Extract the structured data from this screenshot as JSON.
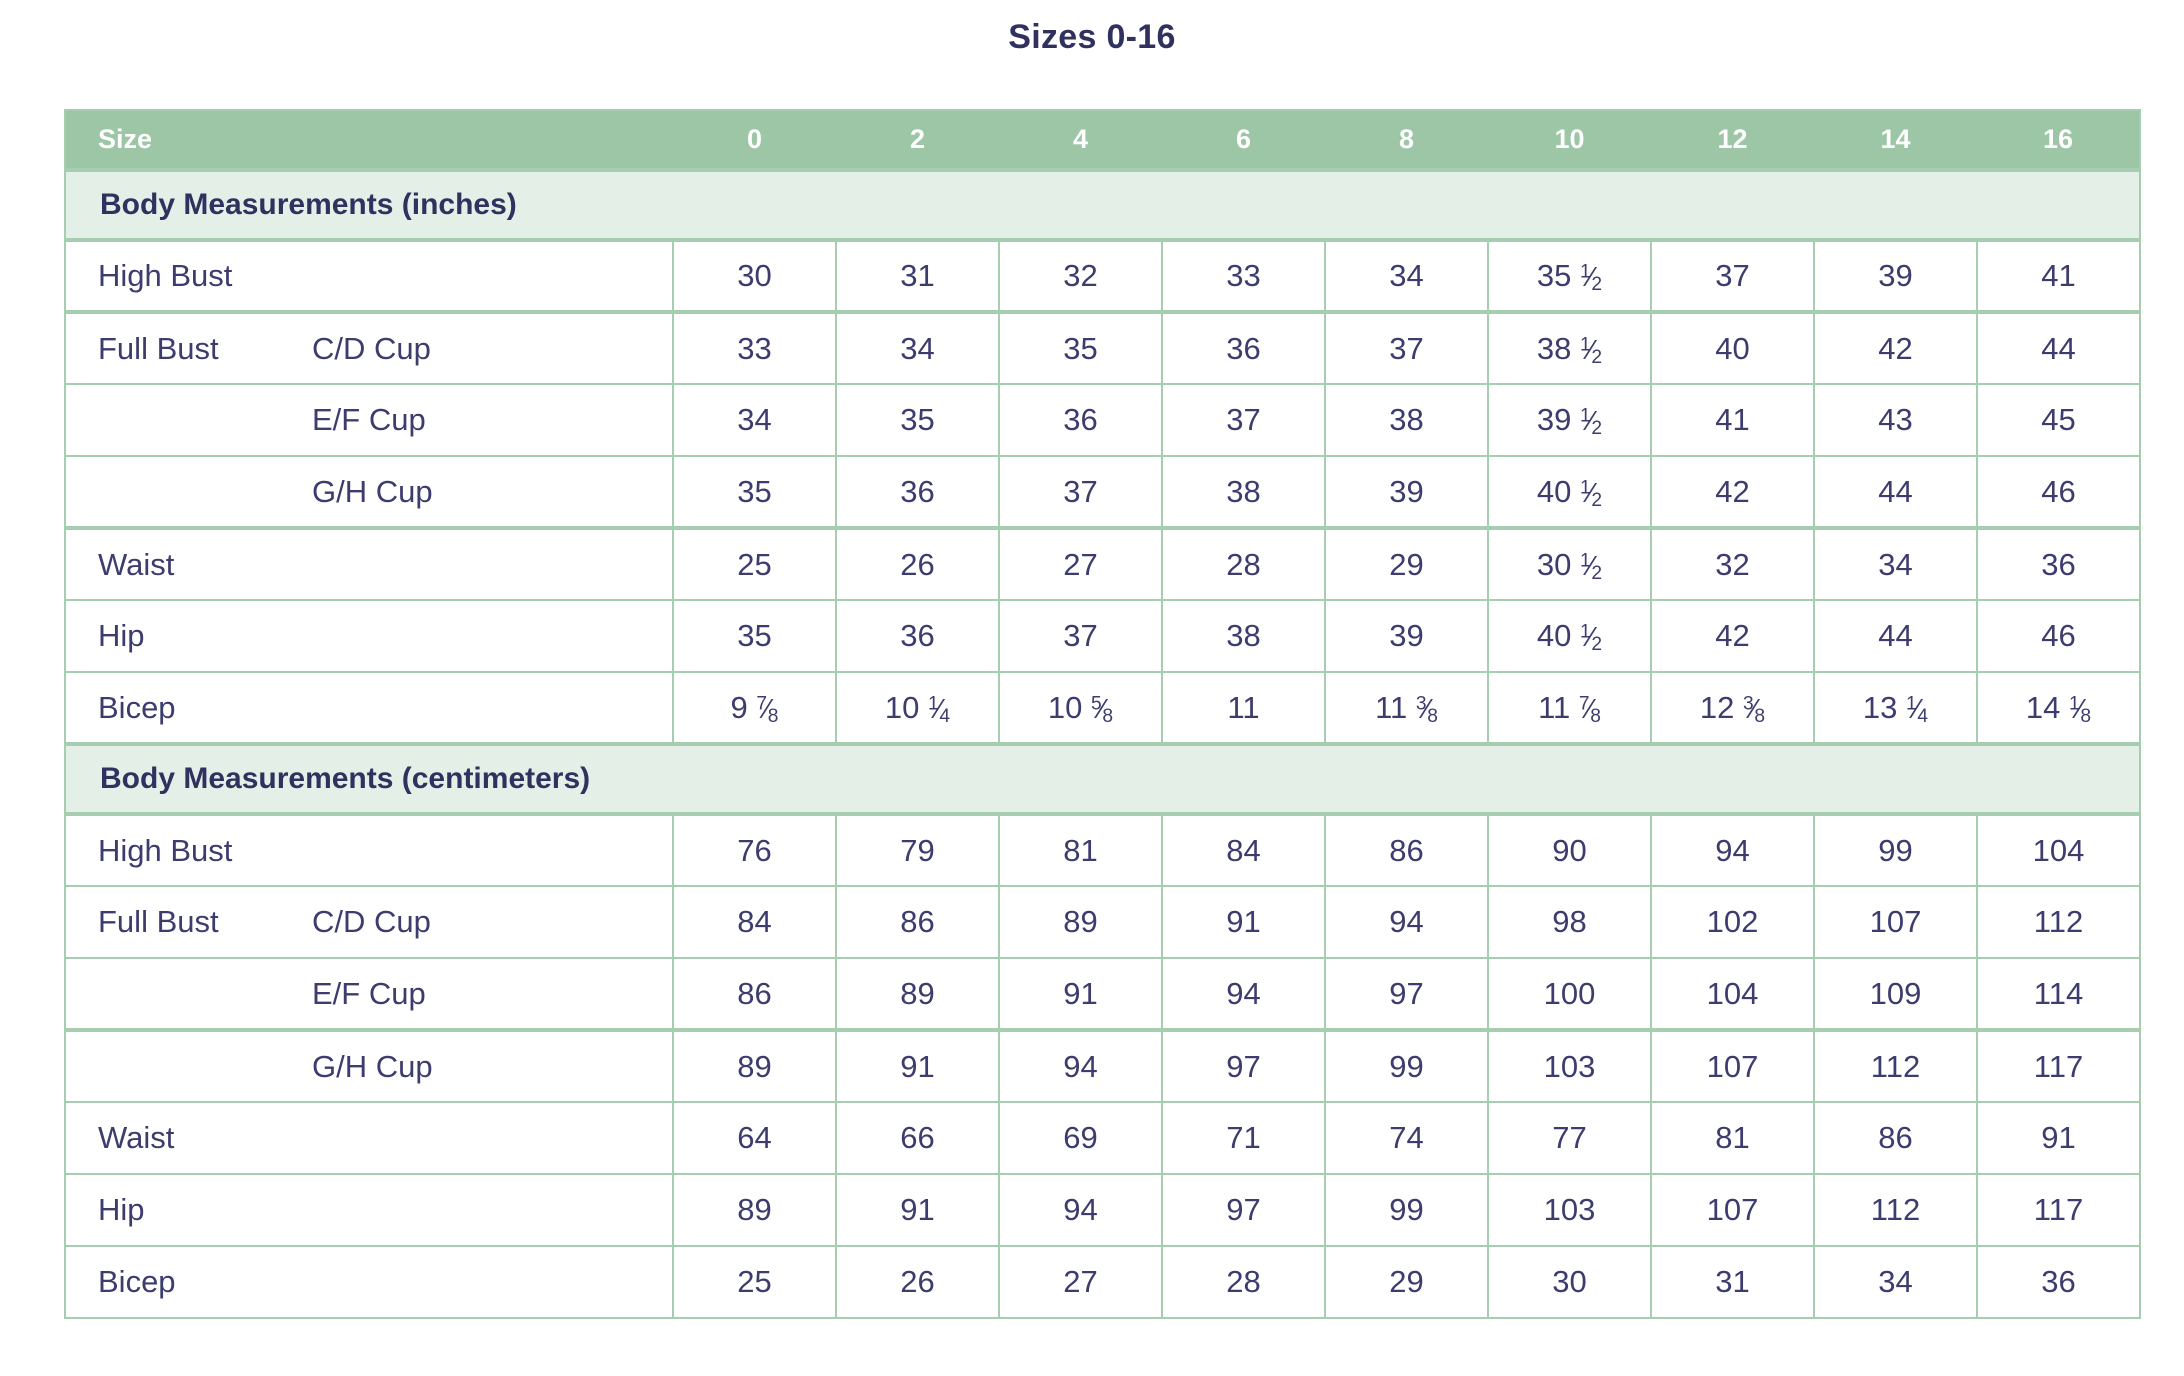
{
  "title": "Sizes 0-16",
  "colors": {
    "header_bg": "#9cc6a5",
    "header_text": "#ffffff",
    "section_bg": "#e4f0e7",
    "border": "#a7cdb0",
    "text": "#3c3c6e",
    "heading_text": "#30315f",
    "row_bg": "#ffffff"
  },
  "table": {
    "header": {
      "label": "Size",
      "sizes": [
        "0",
        "2",
        "4",
        "6",
        "8",
        "10",
        "12",
        "14",
        "16"
      ]
    },
    "sections": [
      {
        "heading": "Body Measurements (inches)",
        "rows": [
          {
            "label": "High Bust",
            "sublabel": "",
            "thick_top": false,
            "values": [
              "30",
              "31",
              "32",
              "33",
              "34",
              "35 1/2",
              "37",
              "39",
              "41"
            ]
          },
          {
            "label": "Full Bust",
            "sublabel": "C/D Cup",
            "thick_top": true,
            "values": [
              "33",
              "34",
              "35",
              "36",
              "37",
              "38 1/2",
              "40",
              "42",
              "44"
            ]
          },
          {
            "label": "",
            "sublabel": "E/F Cup",
            "thick_top": false,
            "values": [
              "34",
              "35",
              "36",
              "37",
              "38",
              "39 1/2",
              "41",
              "43",
              "45"
            ]
          },
          {
            "label": "",
            "sublabel": "G/H Cup",
            "thick_top": false,
            "values": [
              "35",
              "36",
              "37",
              "38",
              "39",
              "40 1/2",
              "42",
              "44",
              "46"
            ]
          },
          {
            "label": "Waist",
            "sublabel": "",
            "thick_top": true,
            "values": [
              "25",
              "26",
              "27",
              "28",
              "29",
              "30 1/2",
              "32",
              "34",
              "36"
            ]
          },
          {
            "label": "Hip",
            "sublabel": "",
            "thick_top": false,
            "values": [
              "35",
              "36",
              "37",
              "38",
              "39",
              "40 1/2",
              "42",
              "44",
              "46"
            ]
          },
          {
            "label": "Bicep",
            "sublabel": "",
            "thick_top": false,
            "values": [
              "9 7/8",
              "10 1/4",
              "10 5/8",
              "11",
              "11 3/8",
              "11 7/8",
              "12 3/8",
              "13 1/4",
              "14 1/8"
            ]
          }
        ]
      },
      {
        "heading": "Body Measurements (centimeters)",
        "rows": [
          {
            "label": "High Bust",
            "sublabel": "",
            "thick_top": false,
            "values": [
              "76",
              "79",
              "81",
              "84",
              "86",
              "90",
              "94",
              "99",
              "104"
            ]
          },
          {
            "label": "Full Bust",
            "sublabel": "C/D Cup",
            "thick_top": false,
            "values": [
              "84",
              "86",
              "89",
              "91",
              "94",
              "98",
              "102",
              "107",
              "112"
            ]
          },
          {
            "label": "",
            "sublabel": "E/F Cup",
            "thick_top": false,
            "values": [
              "86",
              "89",
              "91",
              "94",
              "97",
              "100",
              "104",
              "109",
              "114"
            ]
          },
          {
            "label": "",
            "sublabel": "G/H Cup",
            "thick_top": true,
            "values": [
              "89",
              "91",
              "94",
              "97",
              "99",
              "103",
              "107",
              "112",
              "117"
            ]
          },
          {
            "label": "Waist",
            "sublabel": "",
            "thick_top": false,
            "values": [
              "64",
              "66",
              "69",
              "71",
              "74",
              "77",
              "81",
              "86",
              "91"
            ]
          },
          {
            "label": "Hip",
            "sublabel": "",
            "thick_top": false,
            "values": [
              "89",
              "91",
              "94",
              "97",
              "99",
              "103",
              "107",
              "112",
              "117"
            ]
          },
          {
            "label": "Bicep",
            "sublabel": "",
            "thick_top": false,
            "values": [
              "25",
              "26",
              "27",
              "28",
              "29",
              "30",
              "31",
              "34",
              "36"
            ]
          }
        ]
      }
    ]
  }
}
